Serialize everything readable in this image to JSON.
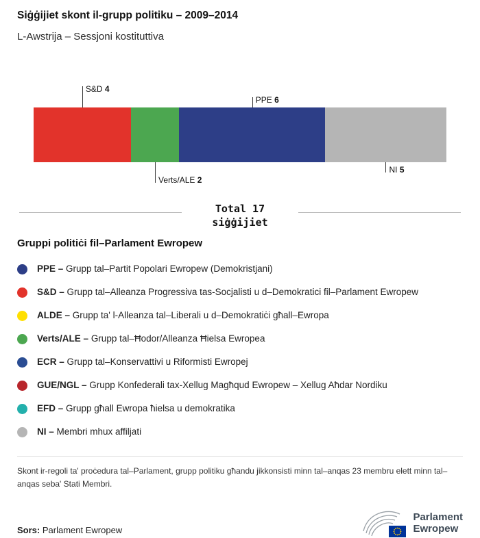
{
  "chart_data": {
    "type": "bar",
    "orientation": "horizontal-stacked",
    "title": "Siġġijiet skont il-grupp politiku – 2009–2014",
    "subtitle": "L-Awstrija – Sessjoni kostituttiva",
    "total_seats": 17,
    "total_label_line1": "Total 17",
    "total_label_line2": "siġġijiet",
    "segments": [
      {
        "id": "sd",
        "group": "S&D",
        "seats": 4,
        "color": "#e2332b",
        "callout_side": "top",
        "callout_offset": "far"
      },
      {
        "id": "verts-ale",
        "group": "Verts/ALE",
        "seats": 2,
        "color": "#4ca750",
        "callout_side": "bottom",
        "callout_offset": "far"
      },
      {
        "id": "ppe",
        "group": "PPE",
        "seats": 6,
        "color": "#2d3e87",
        "callout_side": "top",
        "callout_offset": "near"
      },
      {
        "id": "ni",
        "group": "NI",
        "seats": 5,
        "color": "#b5b5b5",
        "callout_side": "bottom",
        "callout_offset": "near"
      }
    ]
  },
  "legend": {
    "heading": "Gruppi politiċi fil–Parlament Ewropew",
    "items": [
      {
        "abbr": "PPE –",
        "desc": "Grupp tal–Partit Popolari Ewropew (Demokristjani)",
        "color": "#2d3e87"
      },
      {
        "abbr": "S&D –",
        "desc": "Grupp tal–Alleanza Progressiva tas-Socjalisti u d–Demokratici fil–Parlament Ewropew",
        "color": "#e2332b"
      },
      {
        "abbr": "ALDE –",
        "desc": "Grupp ta' l-Alleanza tal–Liberali u d–Demokratiċi għall–Ewropa",
        "color": "#ffdf00"
      },
      {
        "abbr": "Verts/ALE –",
        "desc": "Grupp tal–Ħodor/Alleanza Ħielsa Ewropea",
        "color": "#4ca750"
      },
      {
        "abbr": "ECR –",
        "desc": "Grupp tal–Konservattivi u Riformisti Ewropej",
        "color": "#2a4d93"
      },
      {
        "abbr": "GUE/NGL –",
        "desc": "Grupp Konfederali tax-Xellug Magħqud Ewropew – Xellug Aħdar Nordiku",
        "color": "#b8262c"
      },
      {
        "abbr": "EFD –",
        "desc": "Grupp għall Ewropa ħielsa u demokratika",
        "color": "#23b0ac"
      },
      {
        "abbr": "NI –",
        "desc": "Membri mhux affiljati",
        "color": "#b5b5b5"
      }
    ]
  },
  "footnote": "Skont ir-regoli ta' proċedura tal–Parlament, grupp politiku għandu jikkonsisti minn tal–anqas 23 membru elett minn tal–anqas seba' Stati Membri.",
  "source": {
    "label": "Sors:",
    "value": "Parlament Ewropew"
  },
  "logo": {
    "line1": "Parlament",
    "line2": "Ewropew"
  }
}
